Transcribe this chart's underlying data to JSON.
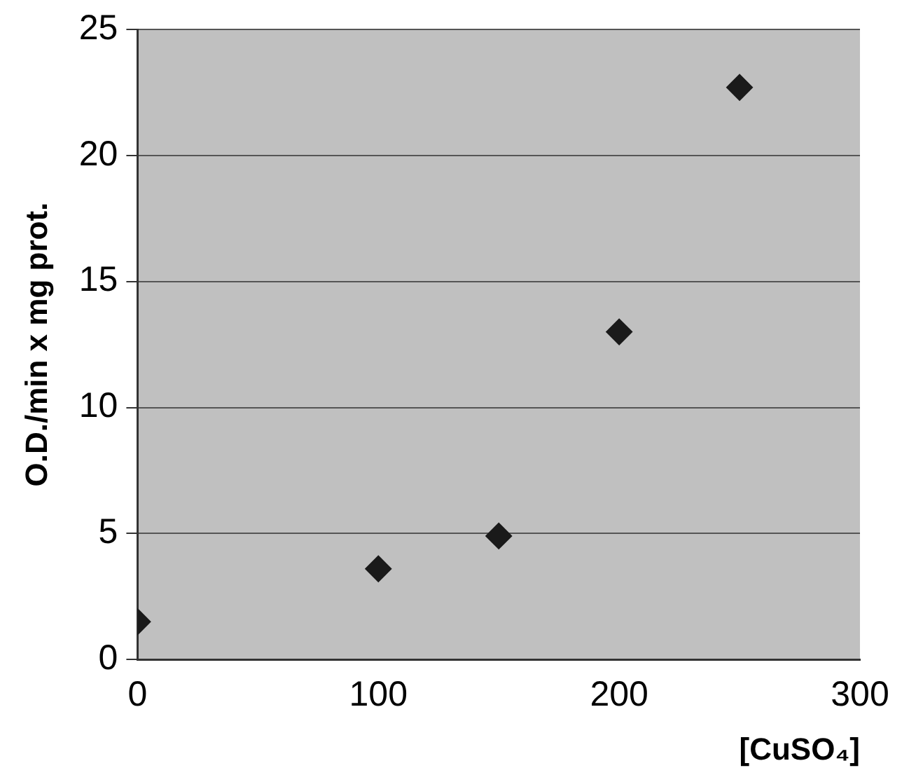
{
  "chart_data": {
    "type": "scatter",
    "xlabel": "[CuSO₄]",
    "ylabel": "O.D./min x mg prot.",
    "x": [
      0,
      100,
      150,
      200,
      250
    ],
    "series": [
      {
        "color": "#1a1a1a",
        "values": [
          1.5,
          3.6,
          4.9,
          13.0,
          22.7
        ]
      }
    ],
    "xlim": [
      0,
      300
    ],
    "xticks": [
      0,
      100,
      200,
      300
    ],
    "ylim": [
      0,
      25
    ],
    "yticks": [
      0,
      5,
      10,
      15,
      20,
      25
    ],
    "grid": "y",
    "marker": "diamond",
    "legend": false
  }
}
